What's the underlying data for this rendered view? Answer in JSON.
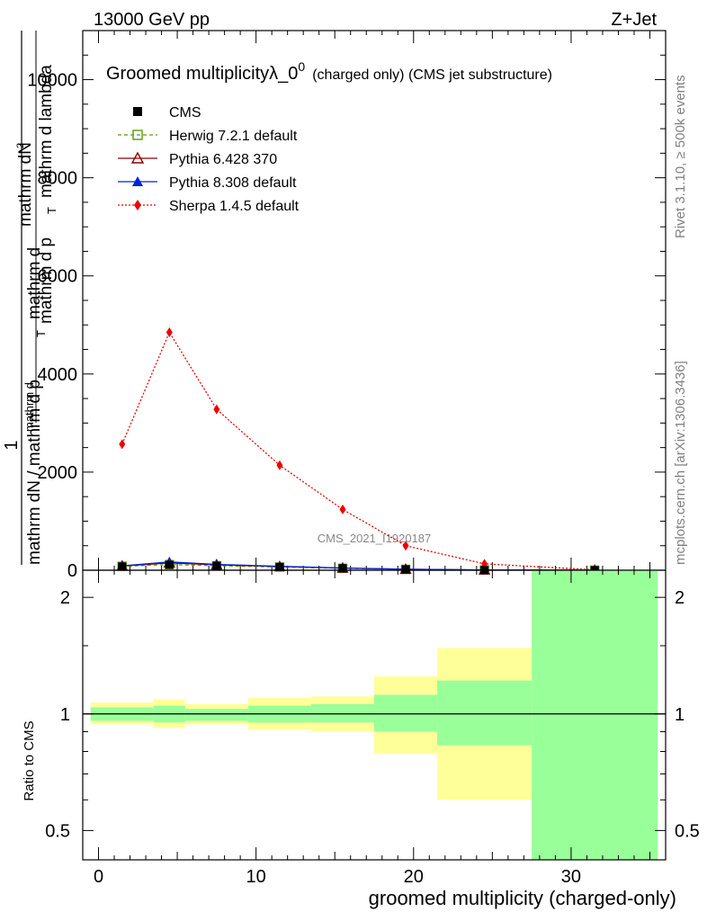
{
  "header": {
    "energy": "13000 GeV pp",
    "process": "Z+Jet"
  },
  "side_labels": {
    "rivet": "Rivet 3.1.10, ≥ 500k events",
    "mcplots": "mcplots.cern.ch [arXiv:1306.3436]"
  },
  "chart_data": [
    {
      "type": "line",
      "title": "Groomed multiplicityλ_0",
      "title_sup": "0",
      "title_suffix": "(charged only) (CMS jet substructure)",
      "watermark": "CMS_2021_I1920187",
      "ylabel_parts": [
        "1",
        "mathrm dN / mathrm d p",
        "T",
        "mathrm d",
        "mathrm d",
        "2",
        "mathrm dN",
        "mathrm d p",
        "T",
        "mathrm d lambda"
      ],
      "xlim": [
        -1,
        36
      ],
      "ylim": [
        0,
        11000
      ],
      "yticks": [
        0,
        2000,
        4000,
        6000,
        8000,
        10000
      ],
      "ytick_labels": [
        "0",
        "2000",
        "4000",
        "6000",
        "8000",
        "10000"
      ],
      "legend_position": "top-left",
      "series": [
        {
          "name": "CMS",
          "color": "#000000",
          "marker": "square-filled",
          "line": "none",
          "x": [
            1.5,
            4.5,
            7.5,
            11.5,
            15.5,
            19.5,
            24.5,
            31.5
          ],
          "y": [
            75,
            110,
            90,
            65,
            40,
            18,
            4,
            0.5
          ]
        },
        {
          "name": "Herwig 7.2.1 default",
          "color": "#55a000",
          "marker": "square-open",
          "line": "dashed",
          "x": [
            1.5,
            4.5,
            7.5,
            11.5,
            15.5,
            19.5,
            24.5,
            31.5
          ],
          "y": [
            80,
            115,
            92,
            66,
            40,
            18,
            5,
            0.6
          ]
        },
        {
          "name": "Pythia 6.428 370",
          "color": "#8b0000",
          "marker": "triangle-open",
          "line": "solid",
          "x": [
            1.5,
            4.5,
            7.5,
            11.5,
            15.5,
            19.5,
            24.5,
            31.5
          ],
          "y": [
            85,
            150,
            110,
            75,
            44,
            20,
            5,
            0.6
          ]
        },
        {
          "name": "Pythia 8.308 default",
          "color": "#0022dd",
          "marker": "triangle-filled",
          "line": "solid",
          "x": [
            1.5,
            4.5,
            7.5,
            11.5,
            15.5,
            19.5,
            24.5,
            31.5
          ],
          "y": [
            90,
            170,
            118,
            80,
            46,
            21,
            5,
            0.6
          ]
        },
        {
          "name": "Sherpa 1.4.5 default",
          "color": "#ee0000",
          "marker": "diamond-filled",
          "line": "dotted",
          "x": [
            1.5,
            4.5,
            7.5,
            11.5,
            15.5,
            19.5,
            24.5,
            31.5
          ],
          "y": [
            2570,
            4850,
            3280,
            2140,
            1240,
            500,
            130,
            8
          ]
        }
      ]
    },
    {
      "type": "area",
      "ylabel": "Ratio to CMS",
      "xlabel": "groomed multiplicity (charged-only)",
      "xlim": [
        -1,
        36
      ],
      "ylim": [
        0.42,
        2.35
      ],
      "ylog": true,
      "yticks": [
        0.5,
        1,
        2
      ],
      "ytick_labels": [
        "0.5",
        "1",
        "2"
      ],
      "xticks": [
        0,
        10,
        20,
        30
      ],
      "xtick_labels": [
        "0",
        "10",
        "20",
        "30"
      ],
      "reference_line": 1,
      "colors": {
        "stat": "#99ff99",
        "total": "#ffff99",
        "reference": "#000000"
      },
      "bins": [
        {
          "lo": -0.5,
          "hi": 3.5,
          "stat": [
            0.96,
            1.04
          ],
          "total": [
            0.94,
            1.07
          ]
        },
        {
          "lo": 3.5,
          "hi": 5.5,
          "stat": [
            0.95,
            1.05
          ],
          "total": [
            0.92,
            1.09
          ]
        },
        {
          "lo": 5.5,
          "hi": 9.5,
          "stat": [
            0.96,
            1.03
          ],
          "total": [
            0.94,
            1.06
          ]
        },
        {
          "lo": 9.5,
          "hi": 13.5,
          "stat": [
            0.95,
            1.05
          ],
          "total": [
            0.91,
            1.1
          ]
        },
        {
          "lo": 13.5,
          "hi": 17.5,
          "stat": [
            0.95,
            1.06
          ],
          "total": [
            0.9,
            1.11
          ]
        },
        {
          "lo": 17.5,
          "hi": 21.5,
          "stat": [
            0.9,
            1.12
          ],
          "total": [
            0.79,
            1.25
          ]
        },
        {
          "lo": 21.5,
          "hi": 27.5,
          "stat": [
            0.83,
            1.22
          ],
          "total": [
            0.6,
            1.48
          ]
        },
        {
          "lo": 27.5,
          "hi": 35.5,
          "stat": [
            0.3,
            3.0
          ],
          "total": [
            0.3,
            3.0
          ]
        }
      ]
    }
  ]
}
